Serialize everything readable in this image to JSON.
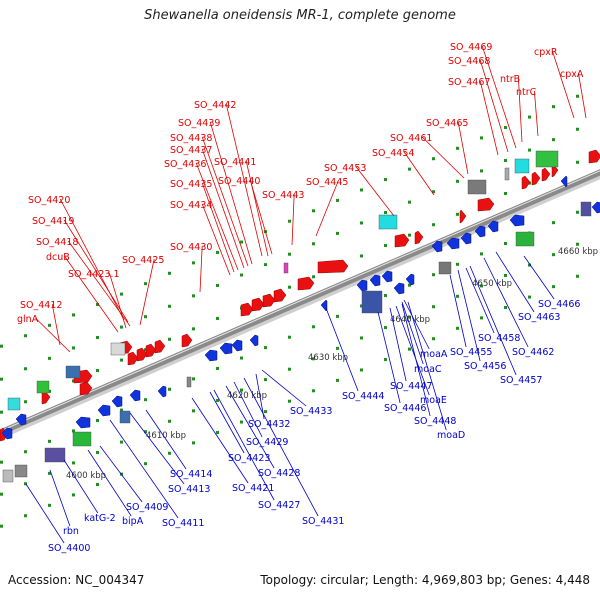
{
  "title": "Shewanella oneidensis MR-1, complete genome",
  "footer": {
    "accession": "Accession: NC_004347",
    "summary": "Topology: circular; Length: 4,969,803 bp; Genes: 4,448"
  },
  "colors": {
    "forward_label": "#e00000",
    "reverse_label": "#0000cc",
    "backbone": "#8a8a8a",
    "tick": "#1f8f1f"
  },
  "scale_labels": [
    "4600 kbp",
    "4610 kbp",
    "4620 kbp",
    "4630 kbp",
    "4640 kbp",
    "4650 kbp",
    "4660 kbp"
  ],
  "forward_genes": [
    "SO_4412",
    "glnA",
    "SO_4420",
    "SO_4419",
    "SO_4418",
    "dcuB",
    "SO_4423.1",
    "SO_4425",
    "SO_4430",
    "SO_4434",
    "SO_4435",
    "SO_4436",
    "SO_4437",
    "SO_4438",
    "SO_4439",
    "SO_4442",
    "SO_4441",
    "SO_4440",
    "SO_4443",
    "SO_4445",
    "SO_4453",
    "SO_4454",
    "SO_4461",
    "SO_4465",
    "SO_4467",
    "SO_4468",
    "SO_4469",
    "ntrB",
    "ntrC",
    "cpxR",
    "cpxA"
  ],
  "reverse_genes": [
    "SO_4400",
    "rbn",
    "katG-2",
    "bipA",
    "SO_4409",
    "SO_4411",
    "SO_4413",
    "SO_4414",
    "SO_4421",
    "SO_4423",
    "SO_4427",
    "SO_4428",
    "SO_4429",
    "SO_4431",
    "SO_4432",
    "SO_4433",
    "SO_4444",
    "SO_4446",
    "SO_4447",
    "moaE",
    "SO_4448",
    "moaD",
    "moaA",
    "moaC",
    "SO_4455",
    "SO_4456",
    "SO_4457",
    "SO_4458",
    "SO_4462",
    "SO_4463",
    "SO_4466"
  ]
}
